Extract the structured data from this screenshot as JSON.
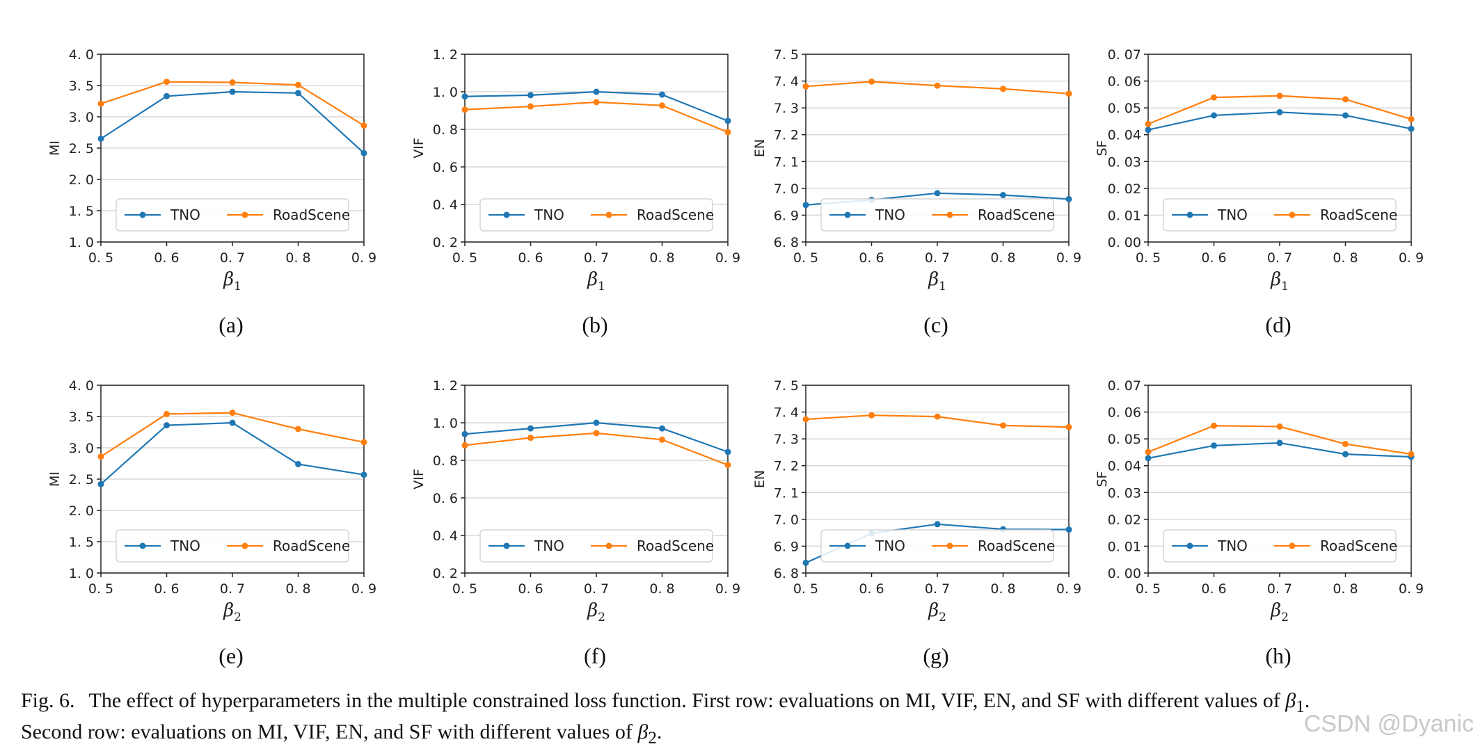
{
  "colors": {
    "TNO": "#1f77b4",
    "RoadScene": "#ff7f0e",
    "grid": "#d9d9d9",
    "axis": "#222222"
  },
  "chart_data": [
    {
      "type": "line",
      "label": "(a)",
      "ylabel": "MI",
      "xlabel_greek": "β",
      "xlabel_sub": "1",
      "x": [
        0.5,
        0.6,
        0.7,
        0.8,
        0.9
      ],
      "xticks": [
        "0. 5",
        "0. 6",
        "0. 7",
        "0. 8",
        "0. 9"
      ],
      "ylim": [
        1.0,
        4.0
      ],
      "yticks": [
        1.0,
        1.5,
        2.0,
        2.5,
        3.0,
        3.5,
        4.0
      ],
      "yticklabels": [
        "1. 0",
        "1. 5",
        "2. 0",
        "2. 5",
        "3. 0",
        "3. 5",
        "4. 0"
      ],
      "series": [
        {
          "name": "TNO",
          "values": [
            2.65,
            3.33,
            3.4,
            3.38,
            2.42
          ]
        },
        {
          "name": "RoadScene",
          "values": [
            3.21,
            3.56,
            3.55,
            3.51,
            2.86
          ]
        }
      ]
    },
    {
      "type": "line",
      "label": "(b)",
      "ylabel": "VIF",
      "xlabel_greek": "β",
      "xlabel_sub": "1",
      "x": [
        0.5,
        0.6,
        0.7,
        0.8,
        0.9
      ],
      "xticks": [
        "0. 5",
        "0. 6",
        "0. 7",
        "0. 8",
        "0. 9"
      ],
      "ylim": [
        0.2,
        1.2
      ],
      "yticks": [
        0.2,
        0.4,
        0.6,
        0.8,
        1.0,
        1.2
      ],
      "yticklabels": [
        "0. 2",
        "0. 4",
        "0. 6",
        "0. 8",
        "1. 0",
        "1. 2"
      ],
      "series": [
        {
          "name": "TNO",
          "values": [
            0.975,
            0.982,
            1.0,
            0.985,
            0.845
          ]
        },
        {
          "name": "RoadScene",
          "values": [
            0.905,
            0.922,
            0.945,
            0.927,
            0.785
          ]
        }
      ]
    },
    {
      "type": "line",
      "label": "(c)",
      "ylabel": "EN",
      "xlabel_greek": "β",
      "xlabel_sub": "1",
      "x": [
        0.5,
        0.6,
        0.7,
        0.8,
        0.9
      ],
      "xticks": [
        "0. 5",
        "0. 6",
        "0. 7",
        "0. 8",
        "0. 9"
      ],
      "ylim": [
        6.8,
        7.5
      ],
      "yticks": [
        6.8,
        6.9,
        7.0,
        7.1,
        7.2,
        7.3,
        7.4,
        7.5
      ],
      "yticklabels": [
        "6. 8",
        "6. 9",
        "7. 0",
        "7. 1",
        "7. 2",
        "7. 3",
        "7. 4",
        "7. 5"
      ],
      "series": [
        {
          "name": "TNO",
          "values": [
            6.938,
            6.957,
            6.982,
            6.975,
            6.96
          ]
        },
        {
          "name": "RoadScene",
          "values": [
            7.38,
            7.398,
            7.383,
            7.371,
            7.353
          ]
        }
      ]
    },
    {
      "type": "line",
      "label": "(d)",
      "ylabel": "SF",
      "xlabel_greek": "β",
      "xlabel_sub": "1",
      "x": [
        0.5,
        0.6,
        0.7,
        0.8,
        0.9
      ],
      "xticks": [
        "0. 5",
        "0. 6",
        "0. 7",
        "0. 8",
        "0. 9"
      ],
      "ylim": [
        0.0,
        0.07
      ],
      "yticks": [
        0.0,
        0.01,
        0.02,
        0.03,
        0.04,
        0.05,
        0.06,
        0.07
      ],
      "yticklabels": [
        "0. 00",
        "0. 01",
        "0. 02",
        "0. 03",
        "0. 04",
        "0. 05",
        "0. 06",
        "0. 07"
      ],
      "series": [
        {
          "name": "TNO",
          "values": [
            0.0418,
            0.0472,
            0.0484,
            0.0472,
            0.0422
          ]
        },
        {
          "name": "RoadScene",
          "values": [
            0.044,
            0.0539,
            0.0545,
            0.0532,
            0.0458
          ]
        }
      ]
    },
    {
      "type": "line",
      "label": "(e)",
      "ylabel": "MI",
      "xlabel_greek": "β",
      "xlabel_sub": "2",
      "x": [
        0.5,
        0.6,
        0.7,
        0.8,
        0.9
      ],
      "xticks": [
        "0. 5",
        "0. 6",
        "0. 7",
        "0. 8",
        "0. 9"
      ],
      "ylim": [
        1.0,
        4.0
      ],
      "yticks": [
        1.0,
        1.5,
        2.0,
        2.5,
        3.0,
        3.5,
        4.0
      ],
      "yticklabels": [
        "1. 0",
        "1. 5",
        "2. 0",
        "2. 5",
        "3. 0",
        "3. 5",
        "4. 0"
      ],
      "series": [
        {
          "name": "TNO",
          "values": [
            2.42,
            3.36,
            3.4,
            2.74,
            2.57
          ]
        },
        {
          "name": "RoadScene",
          "values": [
            2.86,
            3.54,
            3.56,
            3.3,
            3.09
          ]
        }
      ]
    },
    {
      "type": "line",
      "label": "(f)",
      "ylabel": "VIF",
      "xlabel_greek": "β",
      "xlabel_sub": "2",
      "x": [
        0.5,
        0.6,
        0.7,
        0.8,
        0.9
      ],
      "xticks": [
        "0. 5",
        "0. 6",
        "0. 7",
        "0. 8",
        "0. 9"
      ],
      "ylim": [
        0.2,
        1.2
      ],
      "yticks": [
        0.2,
        0.4,
        0.6,
        0.8,
        1.0,
        1.2
      ],
      "yticklabels": [
        "0. 2",
        "0. 4",
        "0. 6",
        "0. 8",
        "1. 0",
        "1. 2"
      ],
      "series": [
        {
          "name": "TNO",
          "values": [
            0.94,
            0.97,
            1.0,
            0.97,
            0.845
          ]
        },
        {
          "name": "RoadScene",
          "values": [
            0.88,
            0.92,
            0.945,
            0.91,
            0.775
          ]
        }
      ]
    },
    {
      "type": "line",
      "label": "(g)",
      "ylabel": "EN",
      "xlabel_greek": "β",
      "xlabel_sub": "2",
      "x": [
        0.5,
        0.6,
        0.7,
        0.8,
        0.9
      ],
      "xticks": [
        "0. 5",
        "0. 6",
        "0. 7",
        "0. 8",
        "0. 9"
      ],
      "ylim": [
        6.8,
        7.5
      ],
      "yticks": [
        6.8,
        6.9,
        7.0,
        7.1,
        7.2,
        7.3,
        7.4,
        7.5
      ],
      "yticklabels": [
        "6. 8",
        "6. 9",
        "7. 0",
        "7. 1",
        "7. 2",
        "7. 3",
        "7. 4",
        "7. 5"
      ],
      "series": [
        {
          "name": "TNO",
          "values": [
            6.838,
            6.948,
            6.982,
            6.963,
            6.962
          ]
        },
        {
          "name": "RoadScene",
          "values": [
            7.373,
            7.388,
            7.383,
            7.35,
            7.344
          ]
        }
      ]
    },
    {
      "type": "line",
      "label": "(h)",
      "ylabel": "SF",
      "xlabel_greek": "β",
      "xlabel_sub": "2",
      "x": [
        0.5,
        0.6,
        0.7,
        0.8,
        0.9
      ],
      "xticks": [
        "0. 5",
        "0. 6",
        "0. 7",
        "0. 8",
        "0. 9"
      ],
      "ylim": [
        0.0,
        0.07
      ],
      "yticks": [
        0.0,
        0.01,
        0.02,
        0.03,
        0.04,
        0.05,
        0.06,
        0.07
      ],
      "yticklabels": [
        "0. 00",
        "0. 01",
        "0. 02",
        "0. 03",
        "0. 04",
        "0. 05",
        "0. 06",
        "0. 07"
      ],
      "series": [
        {
          "name": "TNO",
          "values": [
            0.0428,
            0.0475,
            0.0485,
            0.0443,
            0.0433
          ]
        },
        {
          "name": "RoadScene",
          "values": [
            0.0451,
            0.0549,
            0.0546,
            0.0481,
            0.0443
          ]
        }
      ]
    }
  ],
  "legend": {
    "labels": [
      "TNO",
      "RoadScene"
    ],
    "placement": "bottom-center"
  },
  "caption": {
    "fig_label": "Fig. 6.",
    "line1": "The effect of hyperparameters in the multiple constrained loss function. First row: evaluations on MI, VIF, EN, and SF with different values of ",
    "line1_sym": "β",
    "line1_sub": "1",
    "line1_end": ".",
    "line2": "Second row: evaluations on MI, VIF, EN, and SF with different values of ",
    "line2_sym": "β",
    "line2_sub": "2",
    "line2_end": "."
  },
  "watermark": "CSDN @Dyanic"
}
